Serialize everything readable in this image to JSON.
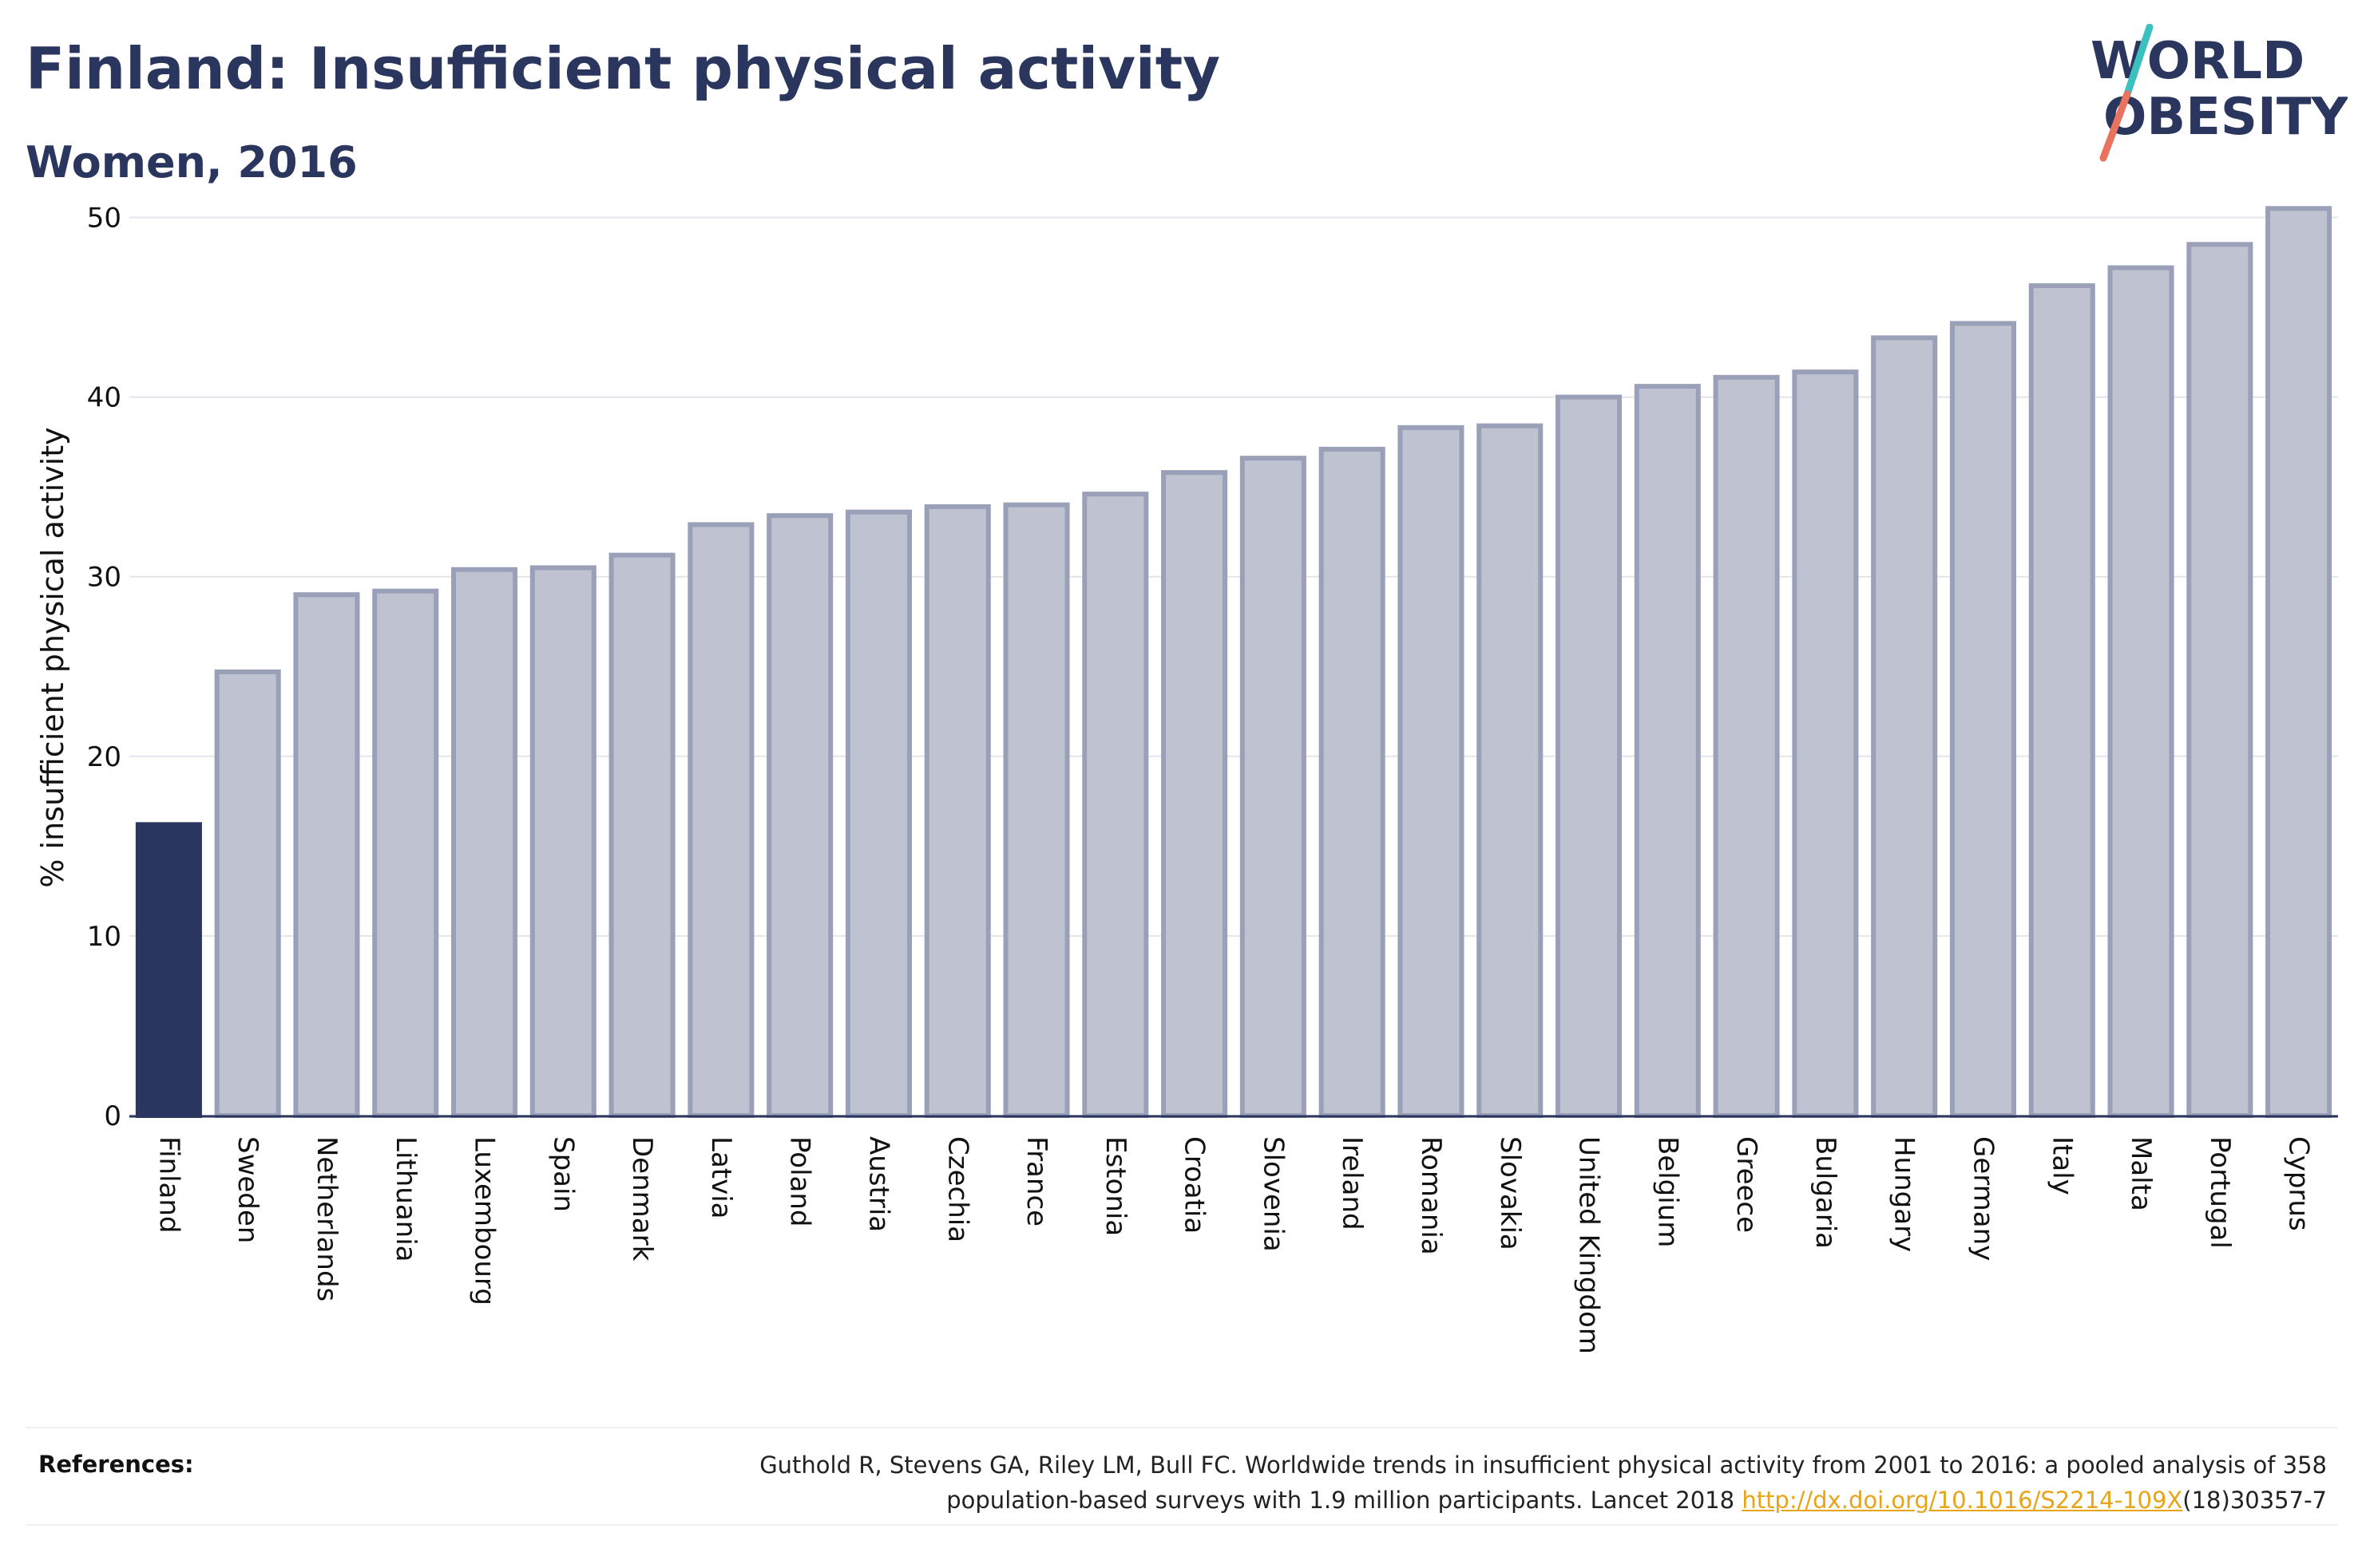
{
  "header": {
    "title": "Finland: Insufficient physical activity",
    "subtitle": "Women, 2016"
  },
  "logo": {
    "line1": "WORLD",
    "line2": "OBESITY",
    "colors": {
      "text": "#2b365f",
      "slash_top": "#3bbfbf",
      "slash_bottom": "#e8735f"
    }
  },
  "chart_data": {
    "type": "bar",
    "ylabel": "% insufficient physical activity",
    "ylim": [
      0,
      51
    ],
    "yticks": [
      0,
      10,
      20,
      30,
      40,
      50
    ],
    "grid": true,
    "highlight": "Finland",
    "colors": {
      "highlight": "#2b365f",
      "bar_fill": "#bfc2d0",
      "bar_stroke": "#9aa0b8",
      "grid": "#e3e5ea",
      "axis": "#2b365f"
    },
    "categories": [
      "Finland",
      "Sweden",
      "Netherlands",
      "Lithuania",
      "Luxembourg",
      "Spain",
      "Denmark",
      "Latvia",
      "Poland",
      "Austria",
      "Czechia",
      "France",
      "Estonia",
      "Croatia",
      "Slovenia",
      "Ireland",
      "Romania",
      "Slovakia",
      "United Kingdom",
      "Belgium",
      "Greece",
      "Bulgaria",
      "Hungary",
      "Germany",
      "Italy",
      "Malta",
      "Portugal",
      "Cyprus"
    ],
    "values": [
      16.2,
      24.7,
      29.0,
      29.2,
      30.4,
      30.5,
      31.2,
      32.9,
      33.4,
      33.6,
      33.9,
      34.0,
      34.6,
      35.8,
      36.6,
      37.1,
      38.3,
      38.4,
      40.0,
      40.6,
      41.1,
      41.4,
      43.3,
      44.1,
      46.2,
      47.2,
      48.5,
      50.5
    ]
  },
  "references": {
    "label": "References:",
    "line1": "Guthold R, Stevens GA, Riley LM, Bull FC. Worldwide trends in insufficient physical activity from 2001 to 2016: a pooled analysis of 358",
    "line2_prefix": "population-based surveys with 1.9 million participants. Lancet 2018 ",
    "link_text": "http://dx.doi.org/10.1016/S2214-109X",
    "line2_suffix": "(18)30357-7"
  }
}
